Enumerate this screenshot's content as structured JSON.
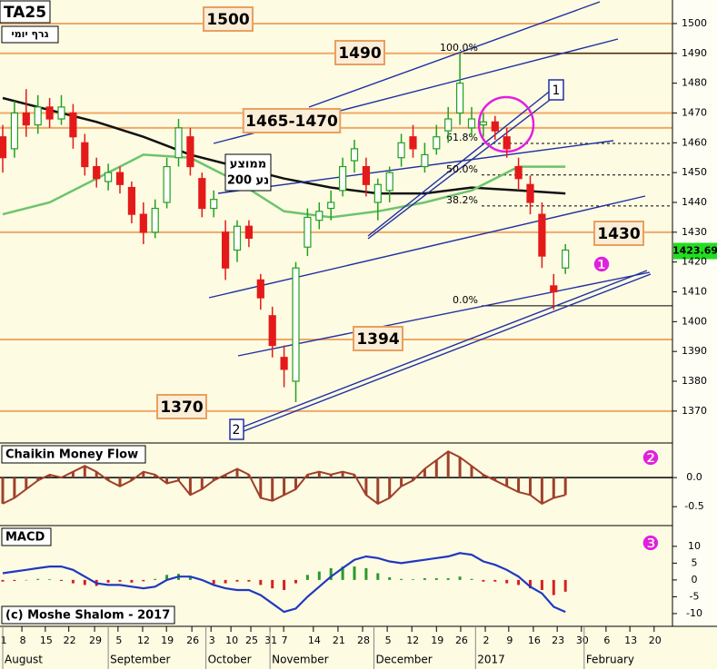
{
  "chart_data": [
    {
      "type": "candlestick",
      "title": "TA25",
      "subtitle": "גרף יומי",
      "x": [
        0,
        3,
        6,
        9,
        12,
        15,
        18,
        21,
        24,
        27,
        30,
        33,
        36,
        39,
        42,
        45,
        48,
        51,
        54,
        57,
        60,
        63,
        66,
        69,
        72,
        75,
        78,
        81,
        84,
        87,
        90,
        93,
        96,
        99,
        102,
        105,
        108,
        111,
        114,
        117,
        120,
        123,
        126,
        129,
        132,
        135,
        138,
        141,
        144
      ],
      "open": [
        1462,
        1458,
        1470,
        1466,
        1472,
        1468,
        1470,
        1460,
        1452,
        1447,
        1450,
        1445,
        1436,
        1430,
        1440,
        1455,
        1462,
        1448,
        1438,
        1430,
        1424,
        1432,
        1414,
        1402,
        1388,
        1380,
        1425,
        1434,
        1438,
        1444,
        1454,
        1452,
        1440,
        1444,
        1455,
        1462,
        1452,
        1458,
        1464,
        1470,
        1465,
        1466,
        1467,
        1462,
        1452,
        1446,
        1436,
        1412,
        1418
      ],
      "high": [
        1466,
        1474,
        1478,
        1476,
        1475,
        1476,
        1473,
        1463,
        1455,
        1453,
        1452,
        1447,
        1440,
        1441,
        1455,
        1468,
        1465,
        1450,
        1444,
        1434,
        1434,
        1434,
        1416,
        1405,
        1392,
        1420,
        1438,
        1440,
        1444,
        1455,
        1461,
        1455,
        1448,
        1452,
        1463,
        1466,
        1460,
        1466,
        1472,
        1490,
        1472,
        1470,
        1469,
        1465,
        1455,
        1449,
        1440,
        1416,
        1426
      ],
      "low": [
        1450,
        1455,
        1462,
        1463,
        1465,
        1466,
        1458,
        1449,
        1445,
        1444,
        1443,
        1433,
        1426,
        1428,
        1438,
        1452,
        1449,
        1435,
        1435,
        1414,
        1420,
        1425,
        1404,
        1388,
        1378,
        1373,
        1422,
        1431,
        1434,
        1442,
        1450,
        1442,
        1434,
        1440,
        1452,
        1455,
        1450,
        1456,
        1460,
        1466,
        1462,
        1462,
        1461,
        1455,
        1444,
        1436,
        1418,
        1404,
        1416
      ],
      "close": [
        1455,
        1470,
        1466,
        1472,
        1468,
        1472,
        1462,
        1452,
        1448,
        1450,
        1446,
        1436,
        1430,
        1438,
        1452,
        1465,
        1452,
        1438,
        1441,
        1418,
        1432,
        1428,
        1408,
        1392,
        1384,
        1418,
        1435,
        1437,
        1440,
        1452,
        1458,
        1446,
        1446,
        1450,
        1460,
        1458,
        1456,
        1462,
        1468,
        1480,
        1468,
        1467,
        1464,
        1458,
        1448,
        1440,
        1422,
        1410,
        1424
      ],
      "up_color": "#22a022",
      "down_color": "#e41a1a",
      "moving_averages": [
        {
          "color": "#111111",
          "x": [
            0,
            12,
            24,
            36,
            48,
            60,
            72,
            84,
            96,
            108,
            120,
            132,
            144
          ],
          "values": [
            1475,
            1471,
            1467,
            1462,
            1456,
            1452,
            1448,
            1445,
            1443,
            1443,
            1445,
            1444,
            1443
          ]
        },
        {
          "color": "#6cc46c",
          "x": [
            0,
            12,
            24,
            36,
            48,
            60,
            72,
            84,
            96,
            108,
            120,
            132,
            144
          ],
          "values": [
            1436,
            1440,
            1448,
            1456,
            1455,
            1447,
            1437,
            1435,
            1437,
            1440,
            1444,
            1452,
            1452
          ]
        }
      ],
      "ma_label_lines": [
        "ממוצע",
        "נע 200"
      ],
      "levels": [
        1500,
        1490,
        1470,
        1465,
        1430,
        1394,
        1370
      ],
      "level_color": "#f0a868",
      "level_labels": [
        1500,
        1490,
        "1465-1470",
        1430,
        1394,
        1370
      ],
      "fibonacci": [
        {
          "label": "100.0%",
          "value": 1490
        },
        {
          "label": "61.8%",
          "value": 1459.8
        },
        {
          "label": "50.0%",
          "value": 1449.2
        },
        {
          "label": "38.2%",
          "value": 1438.8
        },
        {
          "label": "0.0%",
          "value": 1405.3
        }
      ],
      "channel_labels": [
        "1",
        "2"
      ],
      "marker": "❶",
      "last_price": 1423.69,
      "last_price_color": "#22dd22",
      "xlim": [
        -0.7,
        171.4
      ],
      "xticks": [
        {
          "value": 0,
          "label": "1"
        },
        {
          "value": 4.9,
          "label": "8"
        },
        {
          "value": 10.9,
          "label": "15"
        },
        {
          "value": 16.9,
          "label": "22"
        },
        {
          "value": 23.5,
          "label": "29"
        },
        {
          "value": 29.5,
          "label": "5"
        },
        {
          "value": 35.8,
          "label": "12"
        },
        {
          "value": 41.9,
          "label": "19"
        },
        {
          "value": 48.4,
          "label": "26"
        },
        {
          "value": 53.3,
          "label": "3"
        },
        {
          "value": 58.4,
          "label": "10"
        },
        {
          "value": 63.5,
          "label": "25"
        },
        {
          "value": 68.4,
          "label": "31"
        },
        {
          "value": 71.9,
          "label": "7"
        },
        {
          "value": 79.5,
          "label": "14"
        },
        {
          "value": 85.8,
          "label": "21"
        },
        {
          "value": 92.1,
          "label": "28"
        },
        {
          "value": 98.4,
          "label": "5"
        },
        {
          "value": 104.7,
          "label": "12"
        },
        {
          "value": 111,
          "label": "19"
        },
        {
          "value": 117.2,
          "label": "26"
        },
        {
          "value": 123.5,
          "label": "2"
        },
        {
          "value": 129.5,
          "label": "9"
        },
        {
          "value": 135.8,
          "label": "16"
        },
        {
          "value": 141.9,
          "label": "23"
        },
        {
          "value": 148.1,
          "label": "30"
        },
        {
          "value": 154.4,
          "label": "6"
        },
        {
          "value": 160.5,
          "label": "13"
        },
        {
          "value": 166.7,
          "label": "20"
        }
      ],
      "month_labels": [
        {
          "value": 0,
          "label": "August"
        },
        {
          "value": 27,
          "label": "September"
        },
        {
          "value": 52,
          "label": "October"
        },
        {
          "value": 68.4,
          "label": "November"
        },
        {
          "value": 95,
          "label": "December"
        },
        {
          "value": 121,
          "label": "2017"
        },
        {
          "value": 148.8,
          "label": "February"
        }
      ],
      "ylim": [
        1359.6,
        1507.9
      ],
      "yticks": [
        1370,
        1380,
        1390,
        1400,
        1410,
        1420,
        1430,
        1440,
        1450,
        1460,
        1470,
        1480,
        1490,
        1500
      ]
    },
    {
      "type": "bar",
      "title": "Chaikin Money Flow",
      "color": "#a0402a",
      "marker": "❷",
      "values": [
        -0.45,
        -0.35,
        -0.2,
        -0.05,
        0.05,
        0,
        0.1,
        0.2,
        0.1,
        -0.05,
        -0.15,
        -0.05,
        0.1,
        0.05,
        -0.1,
        -0.05,
        -0.3,
        -0.2,
        -0.05,
        0.05,
        0.15,
        0.05,
        -0.35,
        -0.4,
        -0.3,
        -0.2,
        0.05,
        0.1,
        0.05,
        0.1,
        0.05,
        -0.3,
        -0.45,
        -0.35,
        -0.15,
        -0.05,
        0.15,
        0.3,
        0.45,
        0.35,
        0.2,
        0.05,
        -0.05,
        -0.15,
        -0.25,
        -0.3,
        -0.45,
        -0.35,
        -0.3
      ],
      "ylim": [
        -0.81,
        0.58
      ],
      "yticks": [
        {
          "value": 0,
          "label": "0.0"
        },
        {
          "value": -0.5,
          "label": "-0.5"
        }
      ]
    },
    {
      "type": "macd",
      "title": "MACD",
      "footer": "(c) Moshe Shalom - 2017",
      "marker": "❸",
      "line": [
        2,
        2.5,
        3,
        3.5,
        4,
        4,
        3,
        1,
        -1,
        -1.5,
        -1.5,
        -2,
        -2.5,
        -2,
        0,
        1,
        1,
        0,
        -1.5,
        -2.5,
        -3,
        -3,
        -4.5,
        -7,
        -9.5,
        -8.5,
        -5,
        -2,
        1,
        3.5,
        6,
        7,
        6.5,
        5.5,
        5,
        5.5,
        6,
        6.5,
        7,
        8,
        7.5,
        5.5,
        4.5,
        3,
        1,
        -2,
        -4,
        -8,
        -9.5
      ],
      "line_color": "#2038c0",
      "values": [
        -0.5,
        -0.3,
        0,
        0.3,
        0.2,
        -0.3,
        -1,
        -1.5,
        -1.8,
        -0.8,
        -0.5,
        -0.8,
        -0.4,
        0.3,
        1.5,
        1.8,
        1,
        -0.2,
        -1.2,
        -1,
        -0.5,
        -0.5,
        -1.5,
        -2.5,
        -3,
        -1,
        1.5,
        2.5,
        3.5,
        4,
        4,
        3.5,
        2,
        0.8,
        0.3,
        0.2,
        0.5,
        0.5,
        0.5,
        1,
        0.3,
        -0.5,
        -0.5,
        -1,
        -1.5,
        -2.5,
        -3,
        -4.5,
        -3.5
      ],
      "pos_color": "#2a9a2a",
      "neg_color": "#d82020",
      "ylim": [
        -13.8,
        15.9
      ],
      "yticks": [
        10,
        5,
        0,
        -5,
        -10
      ]
    }
  ]
}
